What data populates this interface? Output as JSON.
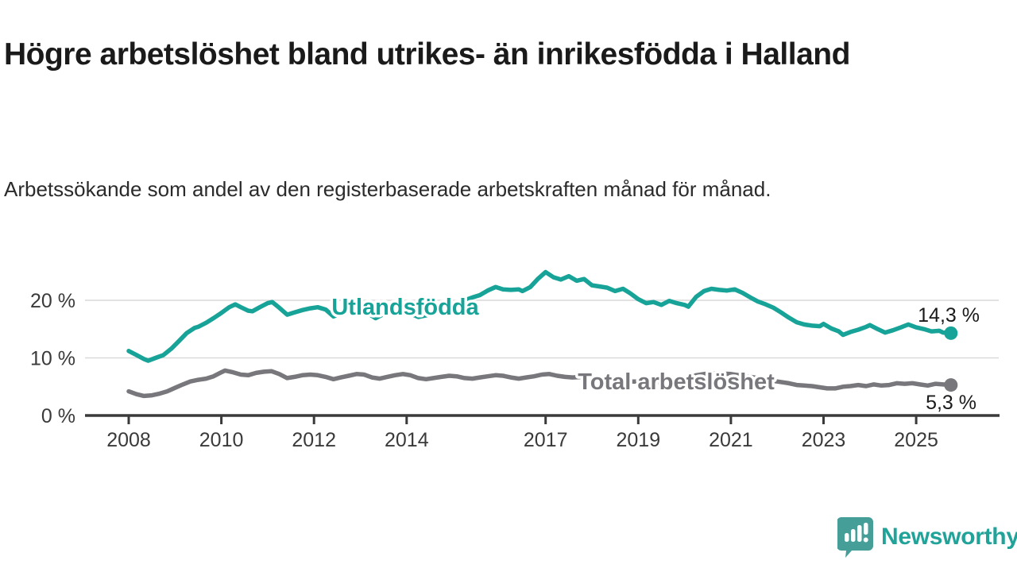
{
  "header": {
    "title": "Högre arbetslöshet bland utrikes- än inrikesfödda i Halland",
    "subtitle": "Arbetssökande som andel av den registerbaserade arbetskraften månad för månad."
  },
  "branding": {
    "name": "Newsworthy",
    "icon_color": "#459e98",
    "text_color": "#21a39a"
  },
  "chart_data": {
    "type": "line",
    "title": "",
    "xlabel": "",
    "ylabel": "",
    "unit": "%",
    "xlim": [
      2007.9,
      2025.95
    ],
    "ylim": [
      0,
      27
    ],
    "grid": true,
    "legend_position": "inline-on-line",
    "style": {
      "grid_color": "#d9d9d9",
      "axis_color": "#3a3a3a",
      "value_label_color": "#1a1a1a"
    },
    "x_ticks": [
      2008,
      2010,
      2012,
      2014,
      2017,
      2019,
      2021,
      2023,
      2025
    ],
    "y_ticks": [
      {
        "value": 0,
        "label": "0 %"
      },
      {
        "value": 10,
        "label": "10 %"
      },
      {
        "value": 20,
        "label": "20 %"
      }
    ],
    "series": [
      {
        "id": "utlandsfodda",
        "name": "Utlandsfödda",
        "color": "#17a398",
        "end_label": "14,3 %",
        "end_value": 14.3,
        "points": [
          [
            2008.0,
            11.2
          ],
          [
            2008.17,
            10.5
          ],
          [
            2008.33,
            9.8
          ],
          [
            2008.42,
            9.5
          ],
          [
            2008.58,
            10.0
          ],
          [
            2008.75,
            10.5
          ],
          [
            2008.92,
            11.6
          ],
          [
            2009.08,
            12.9
          ],
          [
            2009.25,
            14.3
          ],
          [
            2009.42,
            15.2
          ],
          [
            2009.5,
            15.4
          ],
          [
            2009.67,
            16.1
          ],
          [
            2009.83,
            16.9
          ],
          [
            2010.0,
            17.8
          ],
          [
            2010.17,
            18.8
          ],
          [
            2010.3,
            19.3
          ],
          [
            2010.42,
            18.8
          ],
          [
            2010.58,
            18.2
          ],
          [
            2010.67,
            18.1
          ],
          [
            2010.83,
            18.8
          ],
          [
            2011.0,
            19.5
          ],
          [
            2011.1,
            19.7
          ],
          [
            2011.25,
            18.7
          ],
          [
            2011.42,
            17.5
          ],
          [
            2011.58,
            17.9
          ],
          [
            2011.75,
            18.3
          ],
          [
            2011.92,
            18.6
          ],
          [
            2012.08,
            18.8
          ],
          [
            2012.25,
            18.4
          ],
          [
            2012.42,
            17.2
          ],
          [
            2012.58,
            17.7
          ],
          [
            2012.75,
            18.2
          ],
          [
            2012.92,
            18.5
          ],
          [
            2013.08,
            18.3
          ],
          [
            2013.25,
            17.3
          ],
          [
            2013.33,
            16.9
          ],
          [
            2013.5,
            17.6
          ],
          [
            2013.67,
            18.1
          ],
          [
            2013.83,
            18.3
          ],
          [
            2014.0,
            18.1
          ],
          [
            2014.17,
            17.4
          ],
          [
            2014.25,
            17.1
          ],
          [
            2014.42,
            17.4
          ],
          [
            2014.58,
            17.9
          ],
          [
            2014.75,
            18.4
          ],
          [
            2014.92,
            18.9
          ],
          [
            2015.08,
            19.3
          ],
          [
            2015.25,
            20.0
          ],
          [
            2015.42,
            20.5
          ],
          [
            2015.58,
            20.9
          ],
          [
            2015.75,
            21.7
          ],
          [
            2015.92,
            22.3
          ],
          [
            2016.08,
            21.9
          ],
          [
            2016.25,
            21.8
          ],
          [
            2016.42,
            21.9
          ],
          [
            2016.5,
            21.6
          ],
          [
            2016.67,
            22.3
          ],
          [
            2016.83,
            23.7
          ],
          [
            2017.0,
            24.9
          ],
          [
            2017.17,
            24.0
          ],
          [
            2017.33,
            23.6
          ],
          [
            2017.5,
            24.2
          ],
          [
            2017.67,
            23.4
          ],
          [
            2017.83,
            23.7
          ],
          [
            2018.0,
            22.6
          ],
          [
            2018.17,
            22.4
          ],
          [
            2018.33,
            22.2
          ],
          [
            2018.5,
            21.6
          ],
          [
            2018.67,
            22.0
          ],
          [
            2018.83,
            21.2
          ],
          [
            2019.0,
            20.2
          ],
          [
            2019.17,
            19.5
          ],
          [
            2019.33,
            19.7
          ],
          [
            2019.5,
            19.2
          ],
          [
            2019.67,
            19.9
          ],
          [
            2019.83,
            19.5
          ],
          [
            2020.0,
            19.2
          ],
          [
            2020.08,
            18.9
          ],
          [
            2020.25,
            20.6
          ],
          [
            2020.42,
            21.6
          ],
          [
            2020.58,
            22.0
          ],
          [
            2020.75,
            21.8
          ],
          [
            2020.92,
            21.7
          ],
          [
            2021.08,
            21.9
          ],
          [
            2021.25,
            21.3
          ],
          [
            2021.42,
            20.5
          ],
          [
            2021.58,
            19.8
          ],
          [
            2021.75,
            19.3
          ],
          [
            2021.92,
            18.7
          ],
          [
            2022.08,
            17.9
          ],
          [
            2022.25,
            17.0
          ],
          [
            2022.42,
            16.2
          ],
          [
            2022.58,
            15.8
          ],
          [
            2022.75,
            15.6
          ],
          [
            2022.92,
            15.5
          ],
          [
            2023.0,
            15.9
          ],
          [
            2023.17,
            15.1
          ],
          [
            2023.33,
            14.6
          ],
          [
            2023.42,
            14.0
          ],
          [
            2023.58,
            14.5
          ],
          [
            2023.75,
            14.9
          ],
          [
            2023.92,
            15.4
          ],
          [
            2024.0,
            15.7
          ],
          [
            2024.17,
            15.0
          ],
          [
            2024.33,
            14.4
          ],
          [
            2024.5,
            14.8
          ],
          [
            2024.67,
            15.3
          ],
          [
            2024.83,
            15.8
          ],
          [
            2025.0,
            15.3
          ],
          [
            2025.17,
            15.0
          ],
          [
            2025.33,
            14.6
          ],
          [
            2025.5,
            14.7
          ],
          [
            2025.58,
            14.4
          ],
          [
            2025.75,
            14.3
          ]
        ]
      },
      {
        "id": "total-arbetsloshet",
        "name": "Total arbetslöshet",
        "color": "#77777c",
        "end_label": "5,3 %",
        "end_value": 5.3,
        "points": [
          [
            2008.0,
            4.2
          ],
          [
            2008.17,
            3.7
          ],
          [
            2008.33,
            3.4
          ],
          [
            2008.5,
            3.5
          ],
          [
            2008.67,
            3.8
          ],
          [
            2008.83,
            4.2
          ],
          [
            2009.0,
            4.8
          ],
          [
            2009.17,
            5.4
          ],
          [
            2009.33,
            5.9
          ],
          [
            2009.5,
            6.2
          ],
          [
            2009.67,
            6.4
          ],
          [
            2009.83,
            6.8
          ],
          [
            2010.0,
            7.5
          ],
          [
            2010.08,
            7.8
          ],
          [
            2010.25,
            7.5
          ],
          [
            2010.42,
            7.1
          ],
          [
            2010.58,
            7.0
          ],
          [
            2010.75,
            7.4
          ],
          [
            2010.92,
            7.6
          ],
          [
            2011.08,
            7.7
          ],
          [
            2011.25,
            7.2
          ],
          [
            2011.42,
            6.5
          ],
          [
            2011.58,
            6.7
          ],
          [
            2011.75,
            7.0
          ],
          [
            2011.92,
            7.1
          ],
          [
            2012.08,
            7.0
          ],
          [
            2012.25,
            6.7
          ],
          [
            2012.42,
            6.3
          ],
          [
            2012.58,
            6.6
          ],
          [
            2012.75,
            6.9
          ],
          [
            2012.92,
            7.2
          ],
          [
            2013.08,
            7.1
          ],
          [
            2013.25,
            6.6
          ],
          [
            2013.42,
            6.4
          ],
          [
            2013.58,
            6.7
          ],
          [
            2013.75,
            7.0
          ],
          [
            2013.92,
            7.2
          ],
          [
            2014.08,
            7.0
          ],
          [
            2014.25,
            6.5
          ],
          [
            2014.42,
            6.3
          ],
          [
            2014.58,
            6.5
          ],
          [
            2014.75,
            6.7
          ],
          [
            2014.92,
            6.9
          ],
          [
            2015.08,
            6.8
          ],
          [
            2015.25,
            6.5
          ],
          [
            2015.42,
            6.4
          ],
          [
            2015.58,
            6.6
          ],
          [
            2015.75,
            6.8
          ],
          [
            2015.92,
            7.0
          ],
          [
            2016.08,
            6.9
          ],
          [
            2016.25,
            6.6
          ],
          [
            2016.42,
            6.4
          ],
          [
            2016.58,
            6.6
          ],
          [
            2016.75,
            6.8
          ],
          [
            2016.92,
            7.1
          ],
          [
            2017.08,
            7.2
          ],
          [
            2017.25,
            6.9
          ],
          [
            2017.42,
            6.7
          ],
          [
            2017.58,
            6.6
          ],
          [
            2017.83,
            6.7
          ],
          [
            2018.0,
            6.4
          ],
          [
            2018.25,
            6.2
          ],
          [
            2018.5,
            6.0
          ],
          [
            2018.75,
            5.9
          ],
          [
            2019.0,
            5.9
          ],
          [
            2019.33,
            5.8
          ],
          [
            2019.67,
            5.8
          ],
          [
            2020.0,
            6.1
          ],
          [
            2020.25,
            7.0
          ],
          [
            2020.5,
            7.3
          ],
          [
            2020.75,
            7.3
          ],
          [
            2021.0,
            7.2
          ],
          [
            2021.25,
            6.9
          ],
          [
            2021.5,
            6.6
          ],
          [
            2021.75,
            6.2
          ],
          [
            2022.0,
            5.9
          ],
          [
            2022.25,
            5.6
          ],
          [
            2022.42,
            5.3
          ],
          [
            2022.58,
            5.2
          ],
          [
            2022.75,
            5.1
          ],
          [
            2022.92,
            4.9
          ],
          [
            2023.08,
            4.7
          ],
          [
            2023.25,
            4.7
          ],
          [
            2023.42,
            5.0
          ],
          [
            2023.58,
            5.1
          ],
          [
            2023.75,
            5.3
          ],
          [
            2023.92,
            5.1
          ],
          [
            2024.08,
            5.4
          ],
          [
            2024.25,
            5.2
          ],
          [
            2024.42,
            5.3
          ],
          [
            2024.58,
            5.6
          ],
          [
            2024.75,
            5.5
          ],
          [
            2024.92,
            5.6
          ],
          [
            2025.08,
            5.4
          ],
          [
            2025.25,
            5.2
          ],
          [
            2025.42,
            5.5
          ],
          [
            2025.58,
            5.4
          ],
          [
            2025.75,
            5.3
          ]
        ]
      }
    ]
  }
}
